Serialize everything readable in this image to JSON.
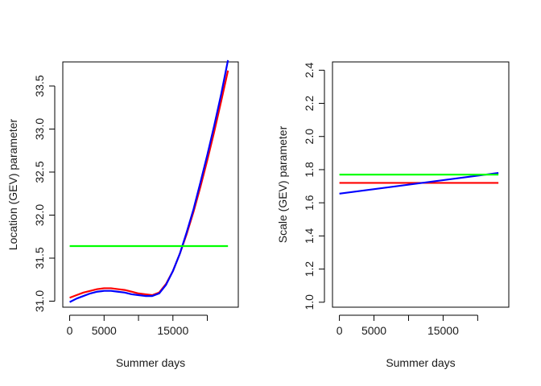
{
  "chart_data": [
    {
      "type": "line",
      "title": "",
      "xlabel": "Summer days",
      "ylabel": "Location (GEV) parameter",
      "xlim": [
        -1000,
        24500
      ],
      "ylim": [
        30.93,
        33.78
      ],
      "xticks": [
        0,
        5000,
        10000,
        15000,
        20000
      ],
      "xtick_labels": [
        "0",
        "5000",
        "",
        "15000",
        ""
      ],
      "yticks": [
        31.0,
        31.5,
        32.0,
        32.5,
        33.0,
        33.5
      ],
      "ytick_labels": [
        "31.0",
        "31.5",
        "32.0",
        "32.5",
        "33.0",
        "33.5"
      ],
      "grid": false,
      "legend": "none",
      "series": [
        {
          "color": "#ff0000",
          "x": [
            0,
            1000,
            2000,
            3000,
            4000,
            5000,
            6000,
            7000,
            8000,
            9000,
            10000,
            11000,
            12000,
            13000,
            14000,
            15000,
            16000,
            17000,
            18000,
            19000,
            20000,
            21000,
            22000,
            23000
          ],
          "y": [
            31.04,
            31.07,
            31.1,
            31.12,
            31.14,
            31.15,
            31.15,
            31.14,
            31.13,
            31.11,
            31.09,
            31.08,
            31.07,
            31.1,
            31.2,
            31.35,
            31.55,
            31.78,
            32.04,
            32.33,
            32.64,
            32.97,
            33.32,
            33.68
          ]
        },
        {
          "color": "#0000ff",
          "x": [
            0,
            1000,
            2000,
            3000,
            4000,
            5000,
            6000,
            7000,
            8000,
            9000,
            10000,
            11000,
            12000,
            13000,
            14000,
            15000,
            16000,
            17000,
            18000,
            19000,
            20000,
            21000,
            22000,
            23000
          ],
          "y": [
            30.99,
            31.03,
            31.06,
            31.09,
            31.11,
            31.12,
            31.12,
            31.11,
            31.1,
            31.08,
            31.07,
            31.06,
            31.06,
            31.09,
            31.19,
            31.35,
            31.55,
            31.8,
            32.07,
            32.38,
            32.7,
            33.04,
            33.4,
            33.8
          ]
        },
        {
          "color": "#00ff00",
          "x": [
            0,
            23000
          ],
          "y": [
            31.64,
            31.64
          ]
        }
      ]
    },
    {
      "type": "line",
      "title": "",
      "xlabel": "Summer days",
      "ylabel": "Scale (GEV) parameter",
      "xlim": [
        -1000,
        24500
      ],
      "ylim": [
        0.97,
        2.45
      ],
      "xticks": [
        0,
        5000,
        10000,
        15000,
        20000
      ],
      "xtick_labels": [
        "0",
        "5000",
        "",
        "15000",
        ""
      ],
      "yticks": [
        1.0,
        1.2,
        1.4,
        1.6,
        1.8,
        2.0,
        2.2,
        2.4
      ],
      "ytick_labels": [
        "1.0",
        "1.2",
        "1.4",
        "1.6",
        "1.8",
        "2.0",
        "2.2",
        "2.4"
      ],
      "grid": false,
      "legend": "none",
      "series": [
        {
          "color": "#ff0000",
          "x": [
            0,
            23000
          ],
          "y": [
            1.72,
            1.72
          ]
        },
        {
          "color": "#0000ff",
          "x": [
            0,
            23000
          ],
          "y": [
            1.655,
            1.78
          ]
        },
        {
          "color": "#00ff00",
          "x": [
            0,
            23000
          ],
          "y": [
            1.77,
            1.77
          ]
        }
      ]
    }
  ]
}
